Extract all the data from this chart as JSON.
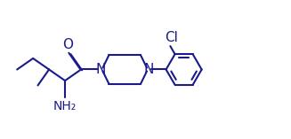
{
  "bg_color": "#ffffff",
  "line_color": "#1a1a8c",
  "text_color": "#1a1a8c",
  "bond_width": 1.5,
  "font_size": 11,
  "fig_width": 3.27,
  "fig_height": 1.57,
  "dpi": 100,
  "atoms": {
    "O_label": "O",
    "N1_label": "N",
    "N2_label": "N",
    "Cl_label": "Cl",
    "NH2_label": "NH₂"
  }
}
